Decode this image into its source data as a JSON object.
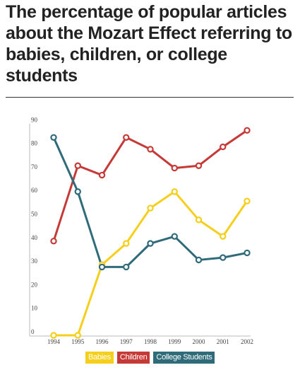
{
  "chart_data": {
    "type": "line",
    "title": "The percentage of popular articles about the Mozart Effect referring to babies, children, or college students",
    "categories": [
      "1994",
      "1995",
      "1996",
      "1997",
      "1998",
      "1999",
      "2000",
      "2001",
      "2002"
    ],
    "y_ticks": [
      "0",
      "10",
      "20",
      "30",
      "40",
      "50",
      "60",
      "70",
      "80",
      "90"
    ],
    "ylim": [
      0,
      90
    ],
    "grid": false,
    "legend_position": "bottom",
    "series": [
      {
        "name": "Babies",
        "color": "#f5cf1b",
        "values": [
          0,
          0,
          30,
          39,
          54,
          61,
          49,
          42,
          57
        ]
      },
      {
        "name": "Children",
        "color": "#c53a37",
        "values": [
          40,
          72,
          68,
          84,
          79,
          71,
          72,
          80,
          87
        ]
      },
      {
        "name": "College Students",
        "color": "#2f6b79",
        "values": [
          84,
          61,
          29,
          29,
          39,
          42,
          32,
          33,
          35
        ]
      }
    ]
  }
}
